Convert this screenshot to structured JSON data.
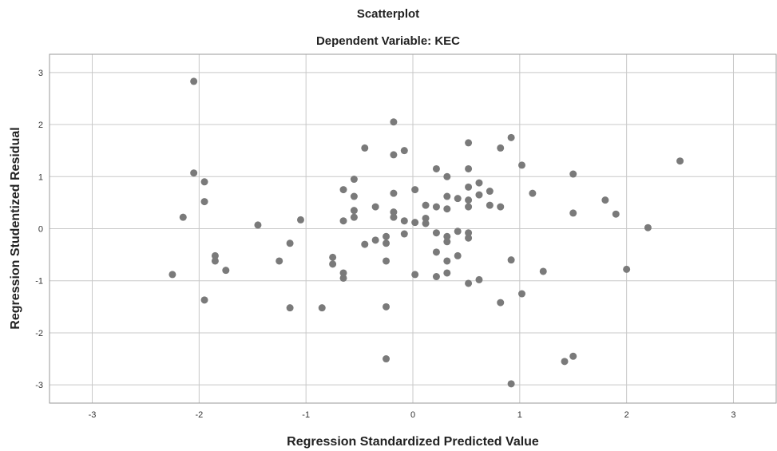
{
  "chart_data": {
    "type": "scatter",
    "title": "Scatterplot",
    "subtitle": "Dependent Variable: KEC",
    "xlabel": "Regression Standardized Predicted Value",
    "ylabel": "Regression Studentized Residual",
    "xlim": [
      -3.4,
      3.4
    ],
    "ylim": [
      -3.35,
      3.35
    ],
    "xticks": [
      -3,
      -2,
      -1,
      0,
      1,
      2,
      3
    ],
    "yticks": [
      -3,
      -2,
      -1,
      0,
      1,
      2,
      3
    ],
    "grid": true,
    "point_color": "#7a7a7a",
    "points": [
      [
        -2.05,
        2.83
      ],
      [
        -2.05,
        1.07
      ],
      [
        -1.95,
        0.9
      ],
      [
        -1.95,
        0.52
      ],
      [
        -2.15,
        0.22
      ],
      [
        -1.85,
        -0.52
      ],
      [
        -1.85,
        -0.62
      ],
      [
        -1.75,
        -0.8
      ],
      [
        -2.25,
        -0.88
      ],
      [
        -1.95,
        -1.37
      ],
      [
        -1.45,
        0.07
      ],
      [
        -1.05,
        0.17
      ],
      [
        -1.15,
        -0.28
      ],
      [
        -1.25,
        -0.62
      ],
      [
        -1.15,
        -1.52
      ],
      [
        -0.85,
        -1.52
      ],
      [
        -0.75,
        -0.55
      ],
      [
        -0.75,
        -0.68
      ],
      [
        -0.65,
        -0.85
      ],
      [
        -0.65,
        -0.95
      ],
      [
        -0.65,
        0.75
      ],
      [
        -0.65,
        0.15
      ],
      [
        -0.55,
        0.95
      ],
      [
        -0.55,
        0.62
      ],
      [
        -0.55,
        0.35
      ],
      [
        -0.55,
        0.22
      ],
      [
        -0.45,
        1.55
      ],
      [
        -0.45,
        -0.3
      ],
      [
        -0.35,
        0.42
      ],
      [
        -0.35,
        -0.22
      ],
      [
        -0.25,
        -0.15
      ],
      [
        -0.25,
        -0.28
      ],
      [
        -0.25,
        -0.62
      ],
      [
        -0.25,
        -1.5
      ],
      [
        -0.25,
        -2.5
      ],
      [
        -0.18,
        2.05
      ],
      [
        -0.18,
        1.42
      ],
      [
        -0.18,
        0.68
      ],
      [
        -0.18,
        0.32
      ],
      [
        -0.18,
        0.22
      ],
      [
        -0.08,
        1.5
      ],
      [
        -0.08,
        0.15
      ],
      [
        -0.08,
        -0.1
      ],
      [
        0.02,
        0.75
      ],
      [
        0.02,
        0.12
      ],
      [
        0.02,
        -0.88
      ],
      [
        0.12,
        0.45
      ],
      [
        0.12,
        0.2
      ],
      [
        0.12,
        0.1
      ],
      [
        0.22,
        1.15
      ],
      [
        0.22,
        0.42
      ],
      [
        0.22,
        -0.08
      ],
      [
        0.22,
        -0.45
      ],
      [
        0.22,
        -0.92
      ],
      [
        0.32,
        1.0
      ],
      [
        0.32,
        0.62
      ],
      [
        0.32,
        0.38
      ],
      [
        0.32,
        -0.15
      ],
      [
        0.32,
        -0.25
      ],
      [
        0.32,
        -0.62
      ],
      [
        0.32,
        -0.85
      ],
      [
        0.42,
        0.58
      ],
      [
        0.42,
        -0.05
      ],
      [
        0.42,
        -0.52
      ],
      [
        0.52,
        1.65
      ],
      [
        0.52,
        1.15
      ],
      [
        0.52,
        0.8
      ],
      [
        0.52,
        0.55
      ],
      [
        0.52,
        0.42
      ],
      [
        0.52,
        -0.08
      ],
      [
        0.52,
        -0.18
      ],
      [
        0.52,
        -1.05
      ],
      [
        0.62,
        0.88
      ],
      [
        0.62,
        0.65
      ],
      [
        0.62,
        -0.98
      ],
      [
        0.72,
        0.72
      ],
      [
        0.72,
        0.45
      ],
      [
        0.82,
        1.55
      ],
      [
        0.82,
        0.42
      ],
      [
        0.82,
        -1.42
      ],
      [
        0.92,
        1.75
      ],
      [
        0.92,
        -0.6
      ],
      [
        0.92,
        -2.98
      ],
      [
        1.02,
        1.22
      ],
      [
        1.02,
        -1.25
      ],
      [
        1.12,
        0.68
      ],
      [
        1.22,
        -0.82
      ],
      [
        1.42,
        -2.55
      ],
      [
        1.5,
        1.05
      ],
      [
        1.5,
        0.3
      ],
      [
        1.5,
        -2.45
      ],
      [
        1.8,
        0.55
      ],
      [
        1.9,
        0.28
      ],
      [
        2.0,
        -0.78
      ],
      [
        2.2,
        0.02
      ],
      [
        2.5,
        1.3
      ]
    ]
  }
}
